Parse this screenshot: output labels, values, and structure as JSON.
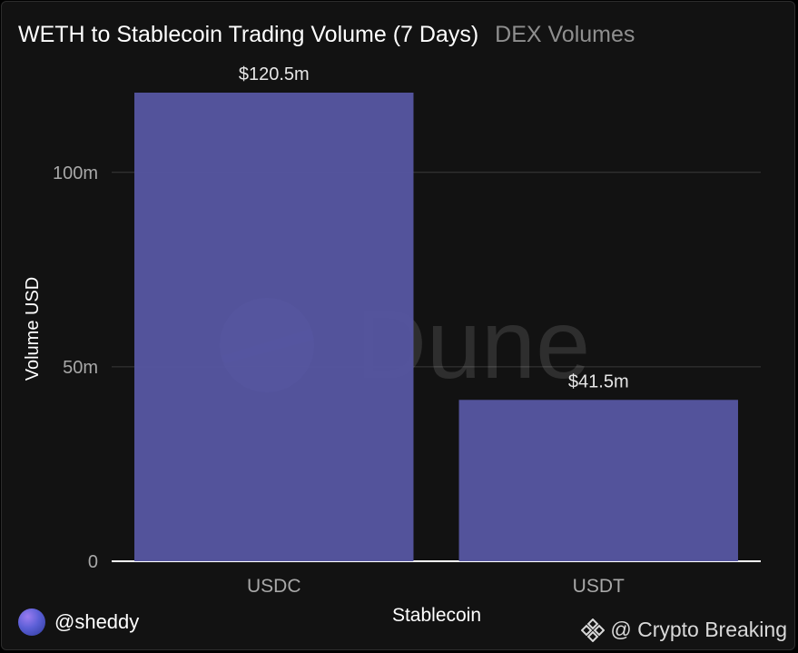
{
  "header": {
    "title": "WETH to Stablecoin Trading Volume (7 Days)",
    "subtitle": "DEX Volumes"
  },
  "chart_data": {
    "type": "bar",
    "categories": [
      "USDC",
      "USDT"
    ],
    "values": [
      120.5,
      41.5
    ],
    "data_labels": [
      "$120.5m",
      "$41.5m"
    ],
    "xlabel": "Stablecoin",
    "ylabel": "Volume USD",
    "ylim": [
      0,
      120.5
    ],
    "yticks": [
      0,
      50,
      100
    ],
    "ytick_labels": [
      "0",
      "50m",
      "100m"
    ],
    "grid": true,
    "bar_color": "#5656a0"
  },
  "watermark": {
    "text": "Dune"
  },
  "footer": {
    "author": "@sheddy",
    "credit": "@ Crypto Breaking",
    "credit_icon": "diamond-logo-icon"
  }
}
